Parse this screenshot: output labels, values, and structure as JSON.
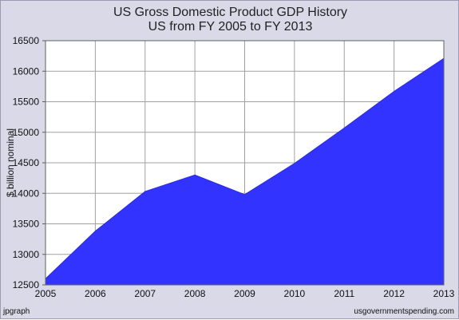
{
  "chart_data": {
    "type": "area",
    "title": "US Gross Domestic Product GDP History",
    "subtitle": "US from FY 2005 to FY 2013",
    "xlabel": "",
    "ylabel": "$ billion nominal",
    "x": [
      2005,
      2006,
      2007,
      2008,
      2009,
      2010,
      2011,
      2012,
      2013
    ],
    "series": [
      {
        "values": [
          12600,
          13380,
          14030,
          14300,
          13980,
          14490,
          15070,
          15670,
          16210
        ]
      }
    ],
    "x_ticks": [
      "2005",
      "2006",
      "2007",
      "2008",
      "2009",
      "2010",
      "2011",
      "2012",
      "2013"
    ],
    "y_ticks": [
      "12500",
      "13000",
      "13500",
      "14000",
      "14500",
      "15000",
      "15500",
      "16000",
      "16500"
    ],
    "xlim": [
      2005,
      2013
    ],
    "ylim": [
      12500,
      16500
    ],
    "grid": true,
    "legend": "none",
    "colors": {
      "fill": "#3333ff",
      "frame": "#d9d9e8",
      "plot_bg": "#ffffff",
      "grid": "#a0a0a0"
    }
  },
  "footer": {
    "left": "jpgraph",
    "right": "usgovernmentspending.com"
  }
}
